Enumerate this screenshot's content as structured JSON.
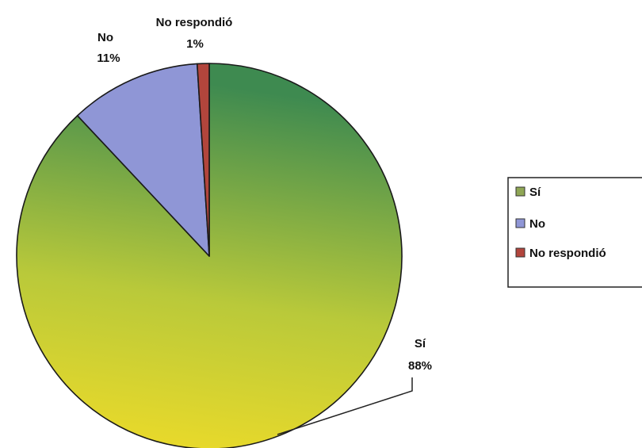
{
  "chart_data": {
    "type": "pie",
    "title": "",
    "slices": [
      {
        "label": "Sí",
        "value": 88,
        "pct_label": "88%",
        "color_start": "#e8d22a",
        "color_end": "#3f8a4f"
      },
      {
        "label": "No",
        "value": 11,
        "pct_label": "11%",
        "color": "#8f96d6"
      },
      {
        "label": "No respondió",
        "value": 1,
        "pct_label": "1%",
        "color": "#b2453c"
      }
    ],
    "legend": {
      "placement": "right",
      "entries": [
        "Sí",
        "No",
        "No respondió"
      ]
    }
  }
}
